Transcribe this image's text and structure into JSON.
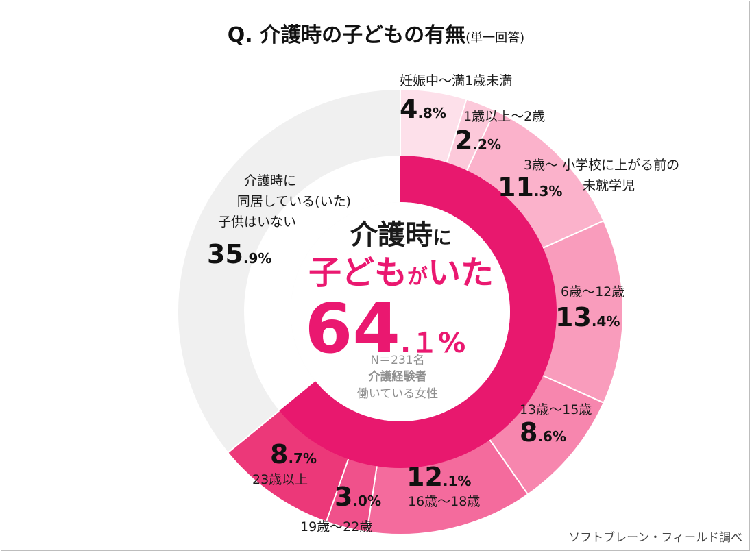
{
  "title": {
    "main": "Q.  介護時の子どもの有無",
    "sub": "(単一回答)"
  },
  "center": {
    "line1": "介護時",
    "line1_suffix": "に",
    "line2_a": "子ども",
    "line2_b": "が",
    "line2_c": "いた",
    "pct_int": "64",
    "pct_dec": ".１%",
    "n": "N＝231名",
    "group": "介護経験者",
    "group2": "働いている女性"
  },
  "source": "ソフトブレーン・フィールド調べ",
  "chart_data": [
    {
      "type": "pie",
      "name": "outer",
      "categories": [
        "妊娠中～満1歳未満",
        "1歳以上～2歳",
        "3歳～ 小学校に上がる前の未就学児",
        "6歳～12歳",
        "13歳～15歳",
        "16歳～18歳",
        "19歳～22歳",
        "23歳以上",
        "介護時に同居している(いた)子供はいない"
      ],
      "values": [
        4.8,
        2.2,
        11.3,
        13.4,
        8.6,
        12.1,
        3.0,
        8.7,
        35.9
      ],
      "value_labels": [
        {
          "int": "4",
          "dec": ".8%"
        },
        {
          "int": "2",
          "dec": ".2%"
        },
        {
          "int": "11",
          "dec": ".3%"
        },
        {
          "int": "13",
          "dec": ".4%"
        },
        {
          "int": "8",
          "dec": ".6%"
        },
        {
          "int": "12",
          "dec": ".1%"
        },
        {
          "int": "3",
          "dec": ".0%"
        },
        {
          "int": "8",
          "dec": ".7%"
        },
        {
          "int": "35",
          "dec": ".9%"
        }
      ],
      "label_lines": [
        [
          "妊娠中～満1歳未満"
        ],
        [
          "1歳以上～2歳"
        ],
        [
          "3歳～ 小学校に上がる前の",
          "未就学児"
        ],
        [
          "6歳～12歳"
        ],
        [
          "13歳～15歳"
        ],
        [
          "16歳～18歳"
        ],
        [
          "19歳～22歳"
        ],
        [
          "23歳以上"
        ],
        [
          "介護時に",
          "同居している(いた)",
          "子供はいない"
        ]
      ],
      "colors": [
        "#fde0ea",
        "#fcc9da",
        "#fbb2cb",
        "#f99cbc",
        "#f786ae",
        "#f46b9d",
        "#f0518b",
        "#ec3879",
        "#f0f0f0"
      ]
    },
    {
      "type": "pie",
      "name": "inner",
      "categories": [
        "子どもがいた",
        "子供はいない"
      ],
      "values": [
        64.1,
        35.9
      ],
      "colors": [
        "#e8186e",
        "#ffffff"
      ]
    }
  ]
}
